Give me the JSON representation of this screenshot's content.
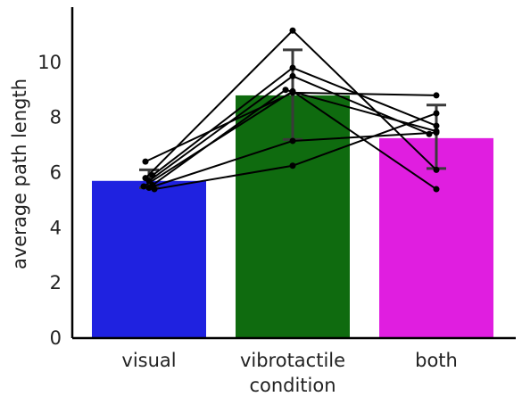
{
  "chart_data": {
    "type": "bar",
    "xlabel": "condition",
    "ylabel": "average path length",
    "categories": [
      "visual",
      "vibrotactile",
      "both"
    ],
    "values": [
      5.7,
      8.8,
      7.25
    ],
    "error_bars": [
      {
        "low": 5.45,
        "high": 6.1
      },
      {
        "low": 7.2,
        "high": 10.45
      },
      {
        "low": 6.15,
        "high": 8.45
      }
    ],
    "bar_colors": [
      "#1f22e0",
      "#0f6b0f",
      "#e01ee0"
    ],
    "ylim": [
      0,
      12
    ],
    "yticks": [
      0,
      2,
      4,
      6,
      8,
      10
    ],
    "grid": false,
    "legend": "none",
    "subjects": [
      {
        "values": [
          6.4,
          8.9,
          8.8
        ]
      },
      {
        "values": [
          5.8,
          11.15,
          6.1
        ]
      },
      {
        "values": [
          5.9,
          9.8,
          7.7
        ]
      },
      {
        "values": [
          5.7,
          9.5,
          7.4
        ]
      },
      {
        "values": [
          5.55,
          9.0,
          7.5
        ]
      },
      {
        "values": [
          5.5,
          8.95,
          5.4
        ]
      },
      {
        "values": [
          5.45,
          7.15,
          7.45
        ]
      },
      {
        "values": [
          5.4,
          6.25,
          8.15
        ]
      }
    ],
    "colors": {
      "axis": "#000000",
      "text": "#222222",
      "subject": "#000000",
      "errorbar": "#3a3a3a"
    }
  }
}
